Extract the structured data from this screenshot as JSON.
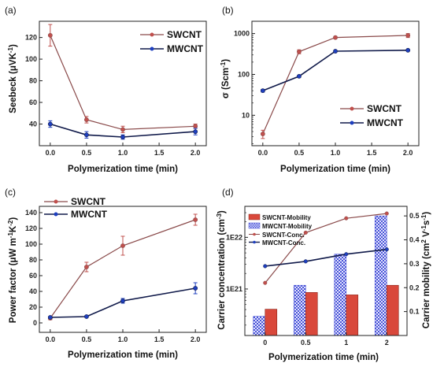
{
  "colors": {
    "swcnt": "#c0504d",
    "swcnt_line": "#8a4a4a",
    "mwcnt": "#1e3fbf",
    "mwcnt_line": "#101a4a",
    "frame": "#222222",
    "bar_hatch": "#4a54d6"
  },
  "chart_data": [
    {
      "panel_label": "(a)",
      "type": "line",
      "title": "",
      "xlabel": "Polymerization time (min)",
      "ylabel_main": "Seebeck (",
      "ylabel_unit": "μVK",
      "ylabel_sup": "-1",
      "ylabel_end": ")",
      "xlim": [
        -0.15,
        2.15
      ],
      "ylim": [
        20,
        135
      ],
      "xticks": [
        0.0,
        0.5,
        1.0,
        1.5,
        2.0
      ],
      "xtick_labels": [
        "0.0",
        "0.5",
        "1.0",
        "1.5",
        "2.0"
      ],
      "yticks": [
        40,
        60,
        80,
        100,
        120
      ],
      "ytick_labels": [
        "40",
        "60",
        "80",
        "100",
        "120"
      ],
      "legend_position": "top-right",
      "series": [
        {
          "name": "SWCNT",
          "x": [
            0,
            0.5,
            1.0,
            2.0
          ],
          "y": [
            122,
            44,
            35,
            38
          ],
          "err": [
            10,
            3,
            3,
            2
          ]
        },
        {
          "name": "MWCNT",
          "x": [
            0,
            0.5,
            1.0,
            2.0
          ],
          "y": [
            40,
            30,
            28,
            33
          ],
          "err": [
            3,
            3,
            2,
            3
          ]
        }
      ]
    },
    {
      "panel_label": "(b)",
      "type": "line",
      "title": "",
      "yscale": "log",
      "xlabel": "Polymerization time (min)",
      "ylabel_main": "σ (",
      "ylabel_unit": "Scm",
      "ylabel_sup": "-1",
      "ylabel_end": ")",
      "xlim": [
        -0.15,
        2.15
      ],
      "ylim": [
        1.8,
        2000
      ],
      "xticks": [
        0.0,
        0.5,
        1.0,
        1.5,
        2.0
      ],
      "xtick_labels": [
        "0.0",
        "0.5",
        "1.0",
        "1.5",
        "2.0"
      ],
      "yticks": [
        10,
        100,
        1000
      ],
      "ytick_labels": [
        "10",
        "100",
        "1000"
      ],
      "legend_position": "bottom-right",
      "series": [
        {
          "name": "SWCNT",
          "x": [
            0,
            0.5,
            1.0,
            2.0
          ],
          "y": [
            3.5,
            360,
            800,
            900
          ],
          "err": [
            0.8,
            40,
            50,
            100
          ]
        },
        {
          "name": "MWCNT",
          "x": [
            0,
            0.5,
            1.0,
            2.0
          ],
          "y": [
            40,
            90,
            370,
            390
          ],
          "err": [
            3,
            5,
            10,
            10
          ]
        }
      ]
    },
    {
      "panel_label": "(c)",
      "type": "line",
      "title": "",
      "xlabel": "Polymerization time (min)",
      "ylabel_main": "Power factor (",
      "ylabel_unit": "μW m",
      "ylabel_sup": "-1",
      "ylabel_unit2": "K",
      "ylabel_sup2": "-2",
      "ylabel_end": ")",
      "xlim": [
        -0.15,
        2.15
      ],
      "ylim": [
        -12,
        148
      ],
      "xticks": [
        0.0,
        0.5,
        1.0,
        1.5,
        2.0
      ],
      "xtick_labels": [
        "0.0",
        "0.5",
        "1.0",
        "1.5",
        "2.0"
      ],
      "yticks": [
        0,
        20,
        40,
        60,
        80,
        100,
        120,
        140
      ],
      "ytick_labels": [
        "0",
        "20",
        "40",
        "60",
        "80",
        "100",
        "120",
        "140"
      ],
      "legend_position": "top-left",
      "series": [
        {
          "name": "SWCNT",
          "x": [
            0,
            0.5,
            1.0,
            2.0
          ],
          "y": [
            6,
            71,
            98,
            131
          ],
          "err": [
            2,
            6,
            12,
            7
          ]
        },
        {
          "name": "MWCNT",
          "x": [
            0,
            0.5,
            1.0,
            2.0
          ],
          "y": [
            7,
            8,
            28,
            44
          ],
          "err": [
            1,
            1,
            3,
            7
          ]
        }
      ]
    },
    {
      "panel_label": "(d)",
      "type": "bar",
      "title": "",
      "xlabel": "Polymerization time (min)",
      "ylabel_left_main": "Carrier concentration (cm",
      "ylabel_left_sup": "-3",
      "ylabel_left_end": ")",
      "ylabel_right_main": "Carrier mobility (cm",
      "ylabel_right_sup": "2",
      "ylabel_right_mid": " V",
      "ylabel_right_sup2": "-1",
      "ylabel_right_mid2": "s",
      "ylabel_right_sup3": "-1",
      "ylabel_right_end": ")",
      "categories": [
        "0",
        "0.5",
        "1",
        "2"
      ],
      "yscale_left": "log",
      "ylim_left_exponents": [
        20.1,
        22.6
      ],
      "yticks_left": [
        "1E21",
        "1E22"
      ],
      "ylim_right": [
        0.0,
        0.54
      ],
      "yticks_right": [
        0.1,
        0.2,
        0.3,
        0.4,
        0.5
      ],
      "ytick_labels_right": [
        "0.1",
        "0.2",
        "0.3",
        "0.4",
        "0.5"
      ],
      "legend_position": "top-left",
      "series": [
        {
          "name": "SWCNT-Mobility",
          "kind": "bar",
          "axis": "right",
          "values": [
            0.11,
            0.18,
            0.17,
            0.21
          ]
        },
        {
          "name": "MWCNT-Mobility",
          "kind": "bar",
          "axis": "right",
          "values": [
            0.08,
            0.21,
            0.34,
            0.5
          ]
        },
        {
          "name": "SWCNT-Conc.",
          "kind": "line",
          "axis": "right",
          "values": [
            0.22,
            0.43,
            0.49,
            0.51
          ]
        },
        {
          "name": "MWCNT-Conc.",
          "kind": "line",
          "axis": "right",
          "values": [
            0.29,
            0.31,
            0.34,
            0.36
          ]
        }
      ]
    }
  ]
}
